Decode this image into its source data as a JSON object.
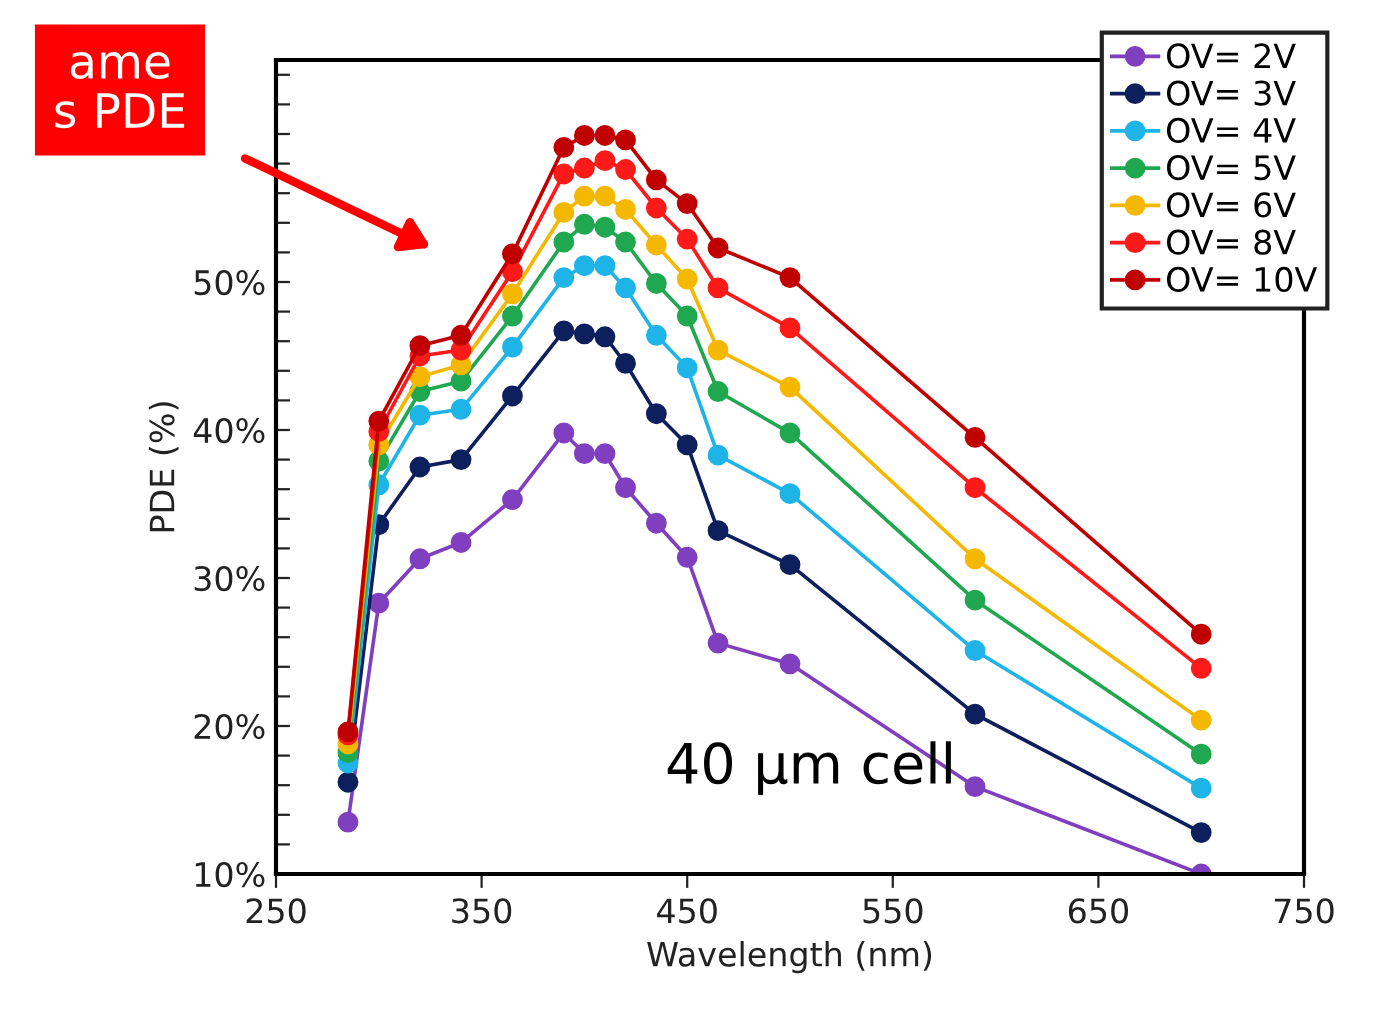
{
  "chart_data": {
    "type": "line",
    "xlabel": "Wavelength (nm)",
    "ylabel": "PDE (%)",
    "x": [
      285,
      300,
      320,
      340,
      365,
      390,
      400,
      410,
      420,
      435,
      450,
      465,
      500,
      590,
      700
    ],
    "series": [
      {
        "name": "OV= 2V",
        "color": "#7f3fbf",
        "values": [
          13.5,
          28.3,
          31.3,
          32.4,
          35.3,
          39.8,
          38.4,
          38.4,
          36.1,
          33.7,
          31.4,
          25.6,
          24.2,
          15.9,
          10
        ]
      },
      {
        "name": "OV= 3V",
        "color": "#0d1f5c",
        "values": [
          16.2,
          33.6,
          37.5,
          38.0,
          42.3,
          46.7,
          46.5,
          46.3,
          44.5,
          41.1,
          39.0,
          33.2,
          30.9,
          20.8,
          12.8
        ]
      },
      {
        "name": "OV= 4V",
        "color": "#1eb4e8",
        "values": [
          17.5,
          36.3,
          41.0,
          41.4,
          45.6,
          50.3,
          51.1,
          51.1,
          49.6,
          46.4,
          44.2,
          38.3,
          35.7,
          25.1,
          15.8
        ]
      },
      {
        "name": "OV= 5V",
        "color": "#1fa84f",
        "values": [
          18.2,
          37.9,
          42.6,
          43.3,
          47.7,
          52.7,
          53.9,
          53.7,
          52.7,
          49.9,
          47.7,
          42.6,
          39.8,
          28.5,
          18.1
        ]
      },
      {
        "name": "OV= 6V",
        "color": "#f5b800",
        "values": [
          18.8,
          39.0,
          43.6,
          44.4,
          49.2,
          54.7,
          55.8,
          55.8,
          54.9,
          52.5,
          50.2,
          45.4,
          42.9,
          31.3,
          20.4
        ]
      },
      {
        "name": "OV= 8V",
        "color": "#ff1a1a",
        "values": [
          19.4,
          39.9,
          45.0,
          45.4,
          50.7,
          57.3,
          57.7,
          58.2,
          57.6,
          55.0,
          52.9,
          49.6,
          46.9,
          36.1,
          23.9
        ]
      },
      {
        "name": "OV= 10V",
        "color": "#c00000",
        "values": [
          19.6,
          40.6,
          45.7,
          46.4,
          51.9,
          59.1,
          59.9,
          59.9,
          59.6,
          56.9,
          55.3,
          52.3,
          50.3,
          39.5,
          26.2
        ]
      }
    ],
    "xlim": [
      250,
      750
    ],
    "xticks": [
      250,
      350,
      450,
      550,
      650,
      750
    ],
    "ylim": [
      10,
      65
    ],
    "yticks": [
      {
        "value": 10,
        "label": "10%"
      },
      {
        "value": 12,
        "label": null
      },
      {
        "value": 14,
        "label": null
      },
      {
        "value": 16,
        "label": null
      },
      {
        "value": 18,
        "label": null
      },
      {
        "value": 20,
        "label": "20%"
      },
      {
        "value": 22,
        "label": null
      },
      {
        "value": 24,
        "label": null
      },
      {
        "value": 26,
        "label": null
      },
      {
        "value": 28,
        "label": null
      },
      {
        "value": 30,
        "label": "30%"
      },
      {
        "value": 32,
        "label": null
      },
      {
        "value": 34,
        "label": null
      },
      {
        "value": 36,
        "label": null
      },
      {
        "value": 38,
        "label": null
      },
      {
        "value": 40,
        "label": "40%"
      },
      {
        "value": 42,
        "label": null
      },
      {
        "value": 44,
        "label": null
      },
      {
        "value": 46,
        "label": null
      },
      {
        "value": 48,
        "label": null
      },
      {
        "value": 50,
        "label": "50%"
      },
      {
        "value": 52,
        "label": null
      },
      {
        "value": 54,
        "label": null
      },
      {
        "value": 56,
        "label": null
      },
      {
        "value": 58,
        "label": null
      },
      {
        "value": 60,
        "label": null
      },
      {
        "value": 62,
        "label": null
      },
      {
        "value": 64,
        "label": null
      }
    ],
    "annotations": [
      "ame\ns PDE",
      "40 μm cell"
    ],
    "marker": "circle",
    "line_style": "solid",
    "legend": "top right",
    "grid": false
  }
}
